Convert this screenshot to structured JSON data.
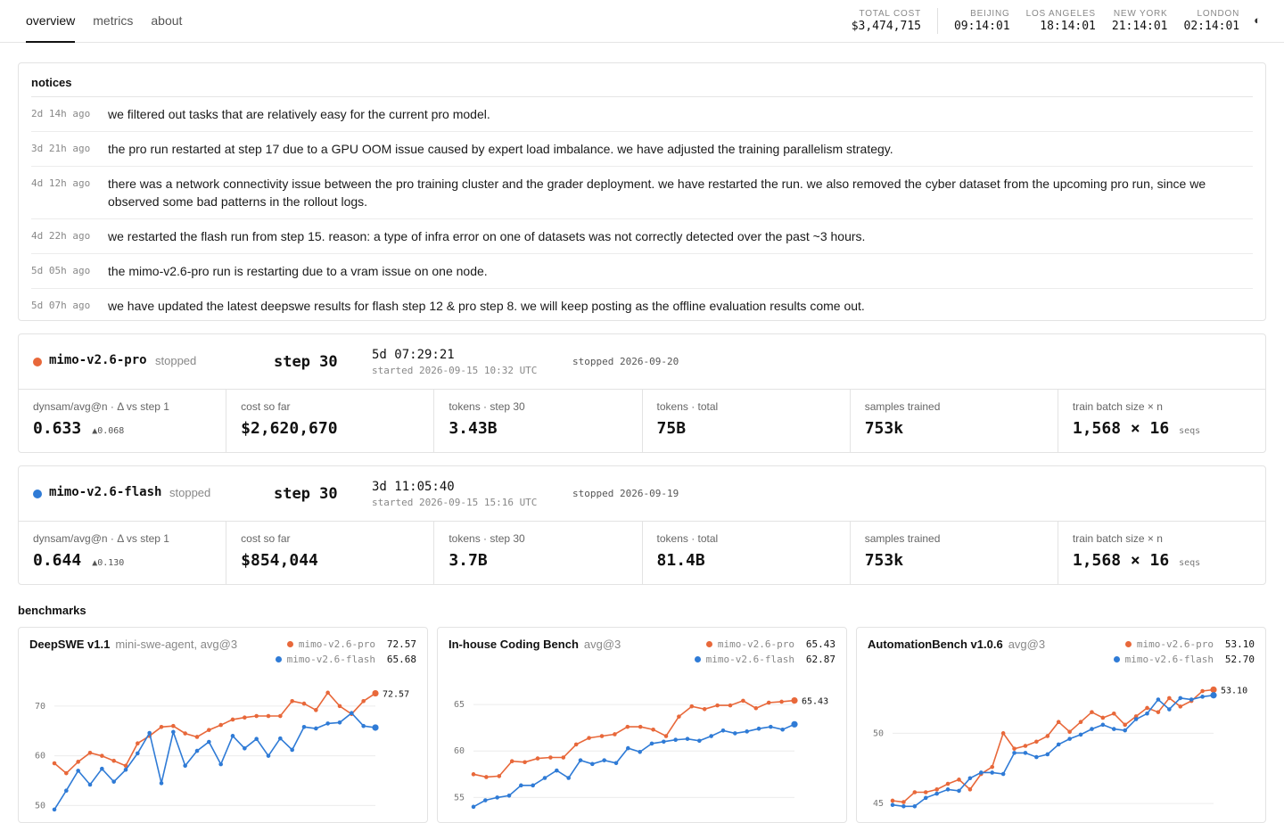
{
  "nav": {
    "tabs": [
      {
        "label": "overview",
        "active": true
      },
      {
        "label": "metrics",
        "active": false
      },
      {
        "label": "about",
        "active": false
      }
    ]
  },
  "header_stats": {
    "total_cost": {
      "label": "TOTAL COST",
      "value": "$3,474,715"
    },
    "clocks": [
      {
        "label": "BEIJING",
        "value": "09:14:01"
      },
      {
        "label": "LOS ANGELES",
        "value": "18:14:01"
      },
      {
        "label": "NEW YORK",
        "value": "21:14:01"
      },
      {
        "label": "LONDON",
        "value": "02:14:01"
      }
    ],
    "theme_icon": "◐"
  },
  "colors": {
    "pro": "#e8683a",
    "flash": "#2f7bd6"
  },
  "notices": {
    "title": "notices",
    "items": [
      {
        "age": "2d 14h ago",
        "text": "we filtered out tasks that are relatively easy for the current pro model."
      },
      {
        "age": "3d 21h ago",
        "text": "the pro run restarted at step 17 due to a GPU OOM issue caused by expert load imbalance. we have adjusted the training parallelism strategy."
      },
      {
        "age": "4d 12h ago",
        "text": "there was a network connectivity issue between the pro training cluster and the grader deployment. we have restarted the run. we also removed the cyber dataset from the upcoming pro run, since we observed some bad patterns in the rollout logs."
      },
      {
        "age": "4d 22h ago",
        "text": "we restarted the flash run from step 15. reason: a type of infra error on one of datasets was not correctly detected over the past ~3 hours."
      },
      {
        "age": "5d 05h ago",
        "text": "the mimo-v2.6-pro run is restarting due to a vram issue on one node."
      },
      {
        "age": "5d 07h ago",
        "text": "we have updated the latest deepswe results for flash step 12 & pro step 8. we will keep posting as the offline evaluation results come out."
      }
    ]
  },
  "runs": {
    "pro": {
      "name": "mimo-v2.6-pro",
      "status": "stopped",
      "step": "step 30",
      "duration": "5d 07:29:21",
      "started": "started 2026-09-15 10:32 UTC",
      "stopped": "stopped 2026-09-20",
      "metrics": [
        {
          "label": "dynsam/avg@n · Δ vs step 1",
          "value": "0.633",
          "delta": "▲0.068"
        },
        {
          "label": "cost so far",
          "value": "$2,620,670"
        },
        {
          "label": "tokens · step 30",
          "value": "3.43B"
        },
        {
          "label": "tokens · total",
          "value": "75B"
        },
        {
          "label": "samples trained",
          "value": "753k"
        },
        {
          "label": "train batch size × n",
          "value": "1,568 × 16",
          "unit": "seqs"
        }
      ]
    },
    "flash": {
      "name": "mimo-v2.6-flash",
      "status": "stopped",
      "step": "step 30",
      "duration": "3d 11:05:40",
      "started": "started 2026-09-15 15:16 UTC",
      "stopped": "stopped 2026-09-19",
      "metrics": [
        {
          "label": "dynsam/avg@n · Δ vs step 1",
          "value": "0.644",
          "delta": "▲0.130"
        },
        {
          "label": "cost so far",
          "value": "$854,044"
        },
        {
          "label": "tokens · step 30",
          "value": "3.7B"
        },
        {
          "label": "tokens · total",
          "value": "81.4B"
        },
        {
          "label": "samples trained",
          "value": "753k"
        },
        {
          "label": "train batch size × n",
          "value": "1,568 × 16",
          "unit": "seqs"
        }
      ]
    }
  },
  "benchmarks_title": "benchmarks",
  "chart_data": [
    {
      "type": "line",
      "title": "DeepSWE v1.1",
      "subtitle": "mini-swe-agent, avg@3",
      "yticks": [
        50,
        60,
        70
      ],
      "ylim": [
        49,
        75
      ],
      "series": [
        {
          "name": "mimo-v2.6-pro",
          "latest": "72.57",
          "values": [
            58.5,
            56.5,
            58.8,
            60.6,
            60.0,
            59.0,
            58.0,
            62.5,
            64.0,
            65.8,
            66.0,
            64.5,
            63.8,
            65.2,
            66.2,
            67.3,
            67.7,
            68.0,
            68.0,
            68.0,
            71.0,
            70.5,
            69.2,
            72.7,
            70.0,
            68.4,
            71.0,
            72.57
          ]
        },
        {
          "name": "mimo-v2.6-flash",
          "latest": "65.68",
          "values": [
            49.2,
            53.0,
            57.0,
            54.2,
            57.4,
            54.8,
            57.2,
            60.5,
            64.6,
            54.5,
            64.8,
            58.0,
            61.0,
            62.8,
            58.3,
            64.0,
            61.5,
            63.4,
            60.0,
            63.5,
            61.2,
            65.8,
            65.5,
            66.5,
            66.7,
            68.6,
            66.0,
            65.68
          ]
        }
      ]
    },
    {
      "type": "line",
      "title": "In-house Coding Bench",
      "subtitle": "avg@3",
      "yticks": [
        55,
        60,
        65
      ],
      "ylim": [
        53.6,
        67.5
      ],
      "series": [
        {
          "name": "mimo-v2.6-pro",
          "latest": "65.43",
          "values": [
            57.5,
            57.2,
            57.3,
            58.9,
            58.8,
            59.2,
            59.3,
            59.3,
            60.7,
            61.4,
            61.6,
            61.8,
            62.6,
            62.6,
            62.3,
            61.6,
            63.7,
            64.8,
            64.5,
            64.9,
            64.9,
            65.4,
            64.6,
            65.2,
            65.3,
            65.43
          ]
        },
        {
          "name": "mimo-v2.6-flash",
          "latest": "62.87",
          "values": [
            54.0,
            54.7,
            55.0,
            55.2,
            56.3,
            56.3,
            57.1,
            57.9,
            57.1,
            59.0,
            58.6,
            59.0,
            58.7,
            60.3,
            59.9,
            60.8,
            61.0,
            61.2,
            61.3,
            61.1,
            61.6,
            62.2,
            61.9,
            62.1,
            62.4,
            62.6,
            62.3,
            62.87
          ]
        }
      ]
    },
    {
      "type": "line",
      "title": "AutomationBench v1.0.6",
      "subtitle": "avg@3",
      "yticks": [
        45,
        50
      ],
      "ylim": [
        44.5,
        53.7
      ],
      "series": [
        {
          "name": "mimo-v2.6-pro",
          "latest": "53.10",
          "values": [
            45.2,
            45.1,
            45.8,
            45.8,
            46.0,
            46.4,
            46.7,
            46.0,
            47.1,
            47.6,
            50.0,
            48.9,
            49.1,
            49.4,
            49.8,
            50.8,
            50.1,
            50.8,
            51.5,
            51.1,
            51.4,
            50.6,
            51.2,
            51.8,
            51.5,
            52.5,
            51.9,
            52.3,
            53.0,
            53.1
          ]
        },
        {
          "name": "mimo-v2.6-flash",
          "latest": "52.70",
          "values": [
            44.9,
            44.8,
            44.8,
            45.4,
            45.7,
            46.0,
            45.9,
            46.8,
            47.2,
            47.2,
            47.1,
            48.6,
            48.6,
            48.3,
            48.5,
            49.2,
            49.6,
            49.9,
            50.3,
            50.6,
            50.3,
            50.2,
            51.0,
            51.4,
            52.4,
            51.7,
            52.5,
            52.4,
            52.6,
            52.7
          ]
        }
      ]
    }
  ]
}
